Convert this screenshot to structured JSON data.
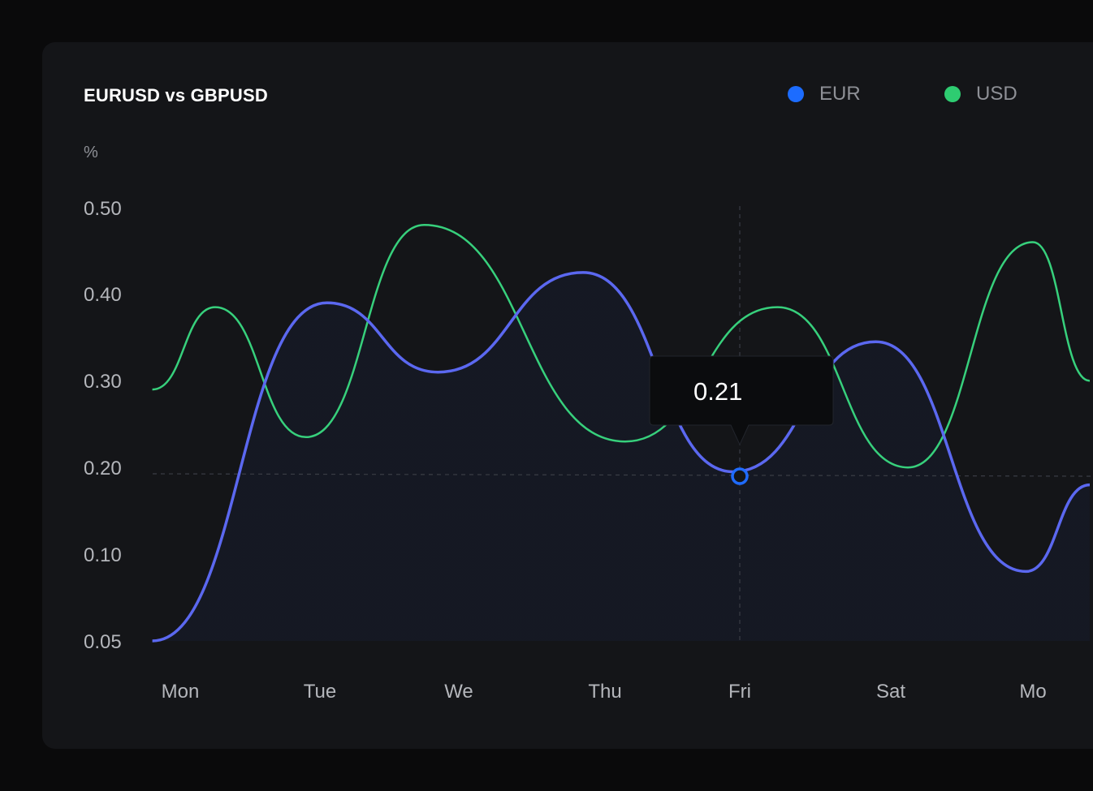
{
  "colors": {
    "eur": "#5b68f0",
    "eur_fill_top": "#3a55d6",
    "usd": "#37d07c",
    "legend_eur": "#1c6cff",
    "legend_usd": "#2ecc71",
    "marker": "#1f6bff"
  },
  "legend": {
    "eur": "EUR",
    "usd": "USD"
  },
  "tooltip": {
    "value": "0.21"
  },
  "chart_data": {
    "type": "line",
    "title": "EURUSD vs GBPUSD",
    "ylabel": "%",
    "xlabel": "",
    "categories": [
      "Mon",
      "Tue",
      "We",
      "Thu",
      "Fri",
      "Sat",
      "Mo"
    ],
    "y_ticks": [
      "0.50",
      "0.40",
      "0.30",
      "0.20",
      "0.10",
      "0.05"
    ],
    "grid": false,
    "legend_position": "top-right",
    "series": [
      {
        "name": "EUR",
        "fill": "area",
        "points": [
          [
            -0.2,
            0.05
          ],
          [
            1.05,
            0.39
          ],
          [
            1.85,
            0.31
          ],
          [
            2.85,
            0.425
          ],
          [
            3.95,
            0.195
          ],
          [
            4.9,
            0.345
          ],
          [
            5.95,
            0.09
          ],
          [
            6.4,
            0.18
          ]
        ]
      },
      {
        "name": "USD",
        "points": [
          [
            -0.2,
            0.29
          ],
          [
            0.25,
            0.385
          ],
          [
            0.9,
            0.235
          ],
          [
            1.75,
            0.48
          ],
          [
            3.15,
            0.23
          ],
          [
            4.25,
            0.385
          ],
          [
            5.12,
            0.2
          ],
          [
            6.0,
            0.46
          ],
          [
            6.4,
            0.3
          ]
        ]
      }
    ],
    "highlight": {
      "category": "Fri",
      "series": "EUR",
      "value": 0.21
    }
  }
}
